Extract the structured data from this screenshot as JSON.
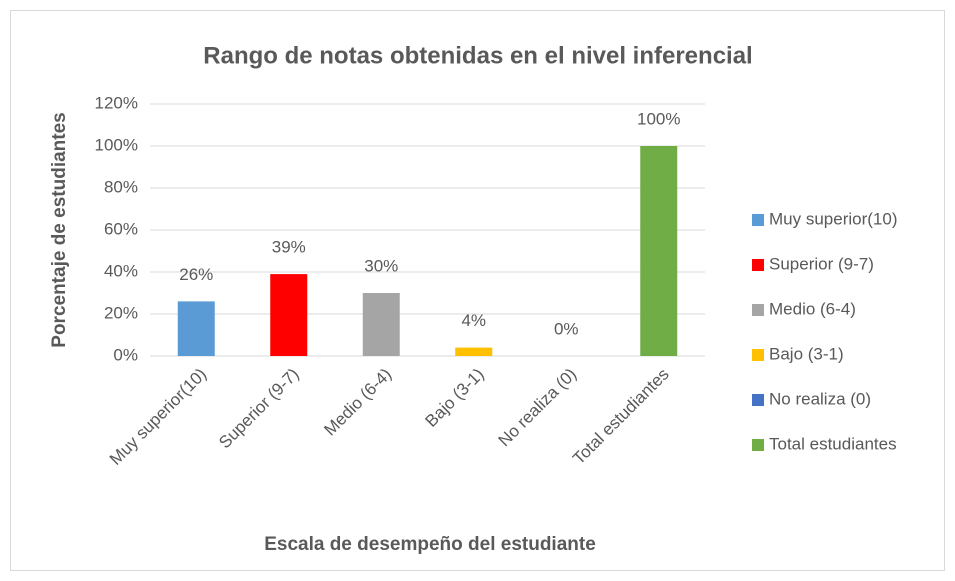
{
  "chart_data": {
    "type": "bar",
    "title": "Rango de notas  obtenidas en el nivel inferencial",
    "x_label": "Escala de desempeño del estudiante",
    "y_label": "Porcentaje de estudiantes",
    "categories": [
      "Muy superior(10)",
      "Superior (9-7)",
      "Medio (6-4)",
      "Bajo (3-1)",
      "No realiza (0)",
      "Total estudiantes"
    ],
    "values": [
      26,
      39,
      30,
      4,
      0,
      100
    ],
    "value_labels": [
      "26%",
      "39%",
      "30%",
      "4%",
      "0%",
      "100%"
    ],
    "colors": [
      "#5b9bd5",
      "#ff0000",
      "#a5a5a5",
      "#ffc000",
      "#4472c4",
      "#70ad47"
    ],
    "ylim": [
      0,
      120
    ],
    "yticks": [
      {
        "value": 0,
        "label": "0%"
      },
      {
        "value": 20,
        "label": "20%"
      },
      {
        "value": 40,
        "label": "40%"
      },
      {
        "value": 60,
        "label": "60%"
      },
      {
        "value": 80,
        "label": "80%"
      },
      {
        "value": 100,
        "label": "100%"
      },
      {
        "value": 120,
        "label": "120%"
      }
    ],
    "grid": true,
    "legend": "right"
  }
}
